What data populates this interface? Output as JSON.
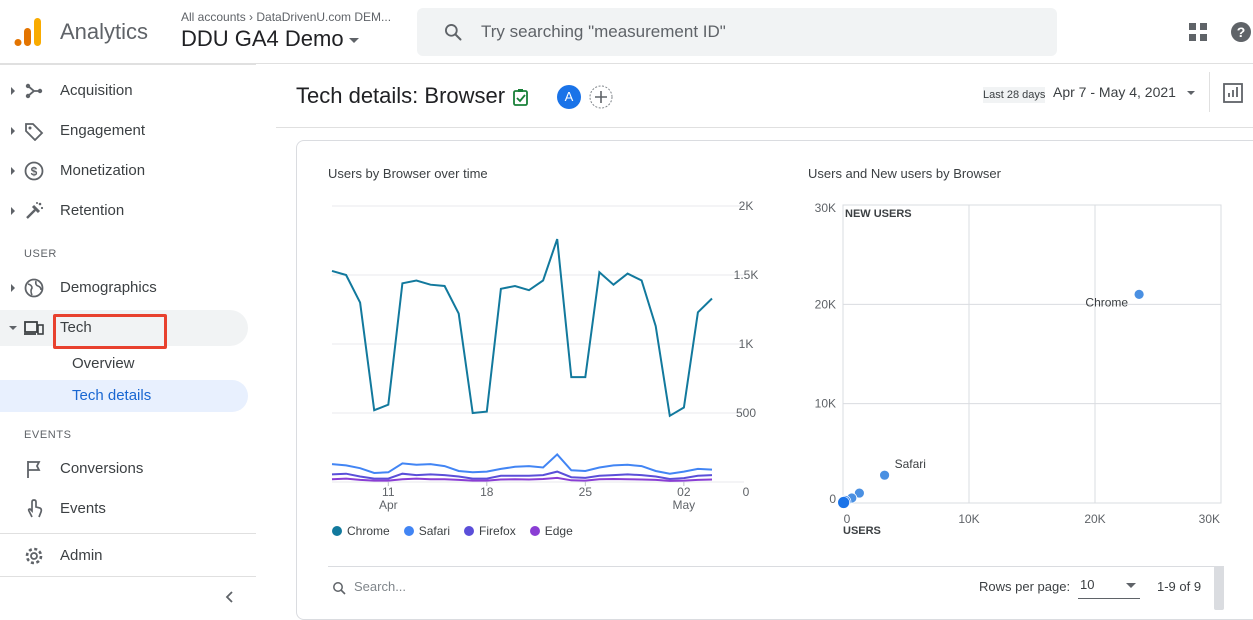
{
  "topbar": {
    "app_name": "Analytics",
    "account_path": "All accounts › DataDrivenU.com DEM...",
    "property_name": "DDU GA4 Demo",
    "search_placeholder": "Try searching \"measurement ID\""
  },
  "sidebar": {
    "items": [
      {
        "label": "Acquisition",
        "icon": "acquisition-icon"
      },
      {
        "label": "Engagement",
        "icon": "tag-icon"
      },
      {
        "label": "Monetization",
        "icon": "dollar-icon"
      },
      {
        "label": "Retention",
        "icon": "retention-icon"
      }
    ],
    "user_section": "USER",
    "user_items": [
      {
        "label": "Demographics",
        "icon": "globe-icon"
      },
      {
        "label": "Tech",
        "icon": "devices-icon"
      }
    ],
    "tech_sub_items": [
      {
        "label": "Overview"
      },
      {
        "label": "Tech details"
      }
    ],
    "events_section": "EVENTS",
    "events_items": [
      {
        "label": "Conversions",
        "icon": "flag-icon"
      },
      {
        "label": "Events",
        "icon": "touch-icon"
      }
    ],
    "admin_label": "Admin"
  },
  "header": {
    "title": "Tech details: Browser",
    "avatar_letter": "A",
    "date_label": "Last 28 days",
    "date_range": "Apr 7 - May 4, 2021"
  },
  "colors": {
    "chrome": "#12799d",
    "safari": "#4285f4",
    "firefox": "#5b4fd9",
    "edge": "#8a3ed4",
    "accent": "#1a73e8",
    "highlight": "#e8412e"
  },
  "line_chart_title": "Users by Browser over time",
  "scatter_chart_title": "Users and New users by Browser",
  "chart_data": [
    {
      "type": "line",
      "title": "Users by Browser over time",
      "x": [
        "Apr 7",
        "Apr 8",
        "Apr 9",
        "Apr 10",
        "Apr 11",
        "Apr 12",
        "Apr 13",
        "Apr 14",
        "Apr 15",
        "Apr 16",
        "Apr 17",
        "Apr 18",
        "Apr 19",
        "Apr 20",
        "Apr 21",
        "Apr 22",
        "Apr 23",
        "Apr 24",
        "Apr 25",
        "Apr 26",
        "Apr 27",
        "Apr 28",
        "Apr 29",
        "Apr 30",
        "May 1",
        "May 2",
        "May 3",
        "May 4"
      ],
      "x_tick_labels": [
        {
          "day": "11",
          "month": "Apr"
        },
        {
          "day": "18",
          "month": ""
        },
        {
          "day": "25",
          "month": ""
        },
        {
          "day": "02",
          "month": "May"
        }
      ],
      "y_tick_labels": [
        "2K",
        "1.5K",
        "1K",
        "500",
        "0"
      ],
      "ylim": [
        0,
        2000
      ],
      "legend_placement": "bottom",
      "series": [
        {
          "name": "Chrome",
          "values": [
            1530,
            1500,
            1300,
            520,
            560,
            1440,
            1460,
            1430,
            1420,
            1220,
            500,
            510,
            1400,
            1420,
            1390,
            1460,
            1760,
            760,
            760,
            1520,
            1430,
            1510,
            1460,
            1130,
            480,
            540,
            1230,
            1330
          ]
        },
        {
          "name": "Safari",
          "values": [
            130,
            120,
            100,
            65,
            70,
            135,
            125,
            130,
            115,
            80,
            70,
            75,
            95,
            110,
            115,
            105,
            200,
            85,
            80,
            105,
            120,
            125,
            115,
            80,
            60,
            75,
            95,
            90
          ]
        },
        {
          "name": "Firefox",
          "values": [
            55,
            60,
            40,
            25,
            25,
            60,
            50,
            55,
            50,
            40,
            25,
            25,
            45,
            45,
            45,
            50,
            75,
            35,
            30,
            45,
            50,
            55,
            50,
            40,
            22,
            28,
            45,
            50
          ]
        },
        {
          "name": "Edge",
          "values": [
            20,
            25,
            15,
            10,
            10,
            20,
            25,
            20,
            20,
            15,
            10,
            10,
            18,
            20,
            18,
            22,
            30,
            12,
            10,
            20,
            22,
            20,
            18,
            15,
            8,
            10,
            15,
            18
          ]
        }
      ]
    },
    {
      "type": "scatter",
      "title": "Users and New users by Browser",
      "xlabel": "USERS",
      "ylabel": "NEW USERS",
      "xlim": [
        0,
        30000
      ],
      "ylim": [
        0,
        30000
      ],
      "x_tick_labels": [
        "0",
        "10K",
        "20K",
        "30K"
      ],
      "y_tick_labels": [
        "30K",
        "20K",
        "10K",
        "0"
      ],
      "grid": true,
      "points": [
        {
          "label": "Chrome",
          "x": 23500,
          "y": 21000,
          "show_label": true
        },
        {
          "label": "Safari",
          "x": 3300,
          "y": 2800,
          "show_label": true
        },
        {
          "label": "",
          "x": 1300,
          "y": 1000,
          "show_label": false
        },
        {
          "label": "",
          "x": 700,
          "y": 500,
          "show_label": false
        },
        {
          "label": "",
          "x": 150,
          "y": 150,
          "show_label": false
        },
        {
          "label": "",
          "x": 50,
          "y": 50,
          "show_label": false
        }
      ]
    }
  ],
  "table": {
    "search_placeholder": "Search...",
    "rows_label": "Rows per page:",
    "rows_value": "10",
    "pager": "1-9 of 9"
  }
}
